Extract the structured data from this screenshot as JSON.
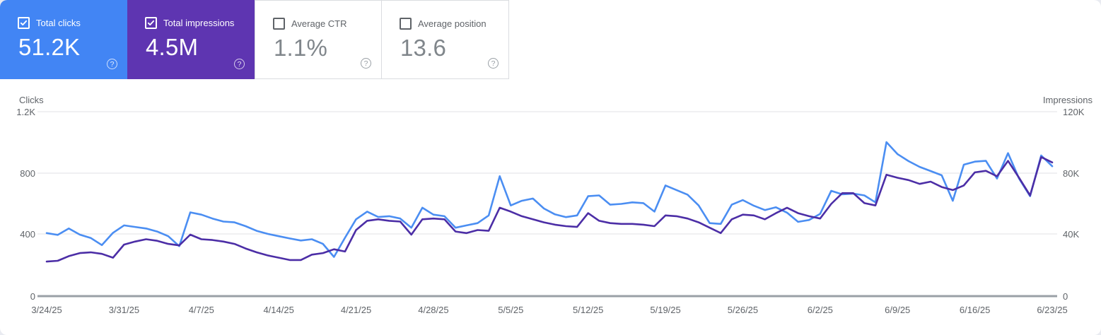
{
  "cards": [
    {
      "label": "Total clicks",
      "value": "51.2K",
      "checked": true,
      "bg": "#4285f4"
    },
    {
      "label": "Total impressions",
      "value": "4.5M",
      "checked": true,
      "bg": "#5e35b1"
    },
    {
      "label": "Average CTR",
      "value": "1.1%",
      "checked": false
    },
    {
      "label": "Average position",
      "value": "13.6",
      "checked": false
    }
  ],
  "help_icon_glyph": "?",
  "chart_data": {
    "type": "line",
    "date_start": "3/24/25",
    "date_end": "6/23/25",
    "x_tick_labels": [
      "3/24/25",
      "3/31/25",
      "4/7/25",
      "4/14/25",
      "4/21/25",
      "4/28/25",
      "5/5/25",
      "5/12/25",
      "5/19/25",
      "5/26/25",
      "6/2/25",
      "6/9/25",
      "6/16/25",
      "6/23/25"
    ],
    "left_axis": {
      "title": "Clicks",
      "tick_labels": [
        "1.2K",
        "800",
        "400",
        "0"
      ],
      "max": 1200,
      "min": 0
    },
    "right_axis": {
      "title": "Impressions",
      "tick_labels": [
        "120K",
        "80K",
        "40K",
        "0"
      ],
      "max": 120000,
      "min": 0
    },
    "grid": "horizontal-only",
    "series": [
      {
        "name": "Total clicks",
        "axis": "left",
        "color": "#4b8ef2",
        "daily_values": [
          410,
          398,
          440,
          400,
          378,
          332,
          412,
          460,
          450,
          440,
          420,
          390,
          325,
          545,
          530,
          505,
          485,
          480,
          455,
          425,
          405,
          390,
          375,
          362,
          370,
          340,
          255,
          380,
          500,
          550,
          515,
          520,
          505,
          445,
          575,
          530,
          520,
          445,
          460,
          475,
          525,
          780,
          590,
          620,
          635,
          570,
          532,
          514,
          525,
          650,
          655,
          595,
          600,
          610,
          605,
          550,
          720,
          690,
          660,
          590,
          475,
          470,
          595,
          625,
          588,
          560,
          578,
          543,
          483,
          495,
          535,
          685,
          662,
          667,
          655,
          610,
          1002,
          924,
          878,
          841,
          814,
          786,
          620,
          855,
          875,
          880,
          765,
          930,
          765,
          650,
          915,
          845
        ]
      },
      {
        "name": "Total impressions",
        "axis": "right",
        "unit": "thousands",
        "color": "#4c2ea6",
        "daily_values": [
          22.5,
          23,
          26,
          28,
          28.5,
          27.5,
          25,
          33.5,
          35.5,
          37,
          36,
          34,
          33,
          40,
          37,
          36.5,
          35.5,
          34,
          31,
          28.5,
          26.5,
          25,
          23.5,
          23.5,
          27,
          28,
          30.5,
          29,
          43,
          49,
          50,
          49,
          48.5,
          40,
          50,
          50.5,
          50,
          42,
          41,
          43,
          42.5,
          57.5,
          55,
          52,
          50,
          48,
          46.5,
          45.5,
          45,
          54,
          49,
          47.5,
          47,
          47,
          46.5,
          45.5,
          52.5,
          52,
          50.5,
          48,
          44.5,
          41,
          50,
          53,
          52.5,
          50,
          54,
          57.5,
          54,
          52,
          50.5,
          60,
          67,
          67,
          60.5,
          59,
          79,
          77,
          75.5,
          73,
          74.5,
          71,
          69,
          72,
          80.5,
          81.5,
          78,
          88,
          77,
          65.5,
          90.5,
          87
        ]
      }
    ]
  }
}
